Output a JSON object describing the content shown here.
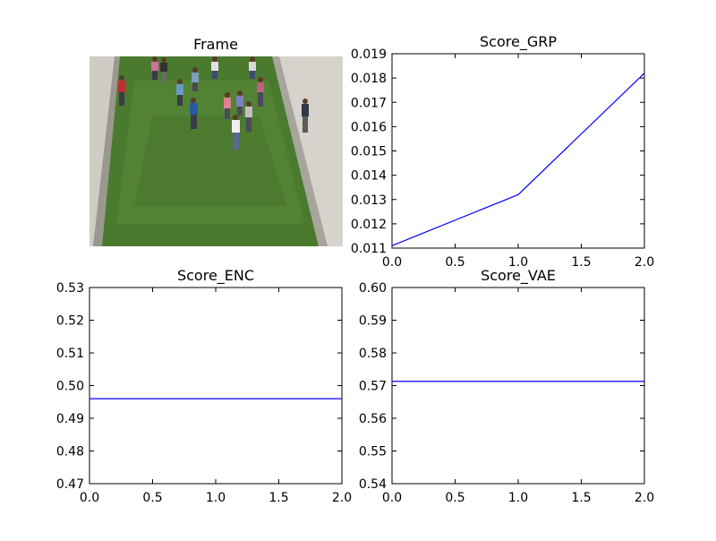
{
  "figure": {
    "frame_panel": {
      "title": "Frame",
      "image_description_hidden": ""
    }
  },
  "chart_data": [
    {
      "type": "line",
      "title": "Score_GRP",
      "xlabel": "",
      "ylabel": "",
      "x": [
        0,
        1,
        2
      ],
      "series": [
        {
          "values": [
            0.0111,
            0.0132,
            0.0182
          ],
          "color": "#0000ff"
        }
      ],
      "xlim": [
        0.0,
        2.0
      ],
      "ylim": [
        0.011,
        0.019
      ],
      "xticks": [
        "0.0",
        "0.5",
        "1.0",
        "1.5",
        "2.0"
      ],
      "yticks": [
        "0.011",
        "0.012",
        "0.013",
        "0.014",
        "0.015",
        "0.016",
        "0.017",
        "0.018",
        "0.019"
      ],
      "grid": false
    },
    {
      "type": "line",
      "title": "Score_ENC",
      "xlabel": "",
      "ylabel": "",
      "x": [
        0,
        1,
        2
      ],
      "series": [
        {
          "values": [
            0.496,
            0.496,
            0.496
          ],
          "color": "#0000ff"
        }
      ],
      "xlim": [
        0.0,
        2.0
      ],
      "ylim": [
        0.47,
        0.53
      ],
      "xticks": [
        "0.0",
        "0.5",
        "1.0",
        "1.5",
        "2.0"
      ],
      "yticks": [
        "0.47",
        "0.48",
        "0.49",
        "0.50",
        "0.51",
        "0.52",
        "0.53"
      ],
      "grid": false
    },
    {
      "type": "line",
      "title": "Score_VAE",
      "xlabel": "",
      "ylabel": "",
      "x": [
        0,
        1,
        2
      ],
      "series": [
        {
          "values": [
            0.5713,
            0.5713,
            0.5713
          ],
          "color": "#0000ff"
        }
      ],
      "xlim": [
        0.0,
        2.0
      ],
      "ylim": [
        0.54,
        0.6
      ],
      "xticks": [
        "0.0",
        "0.5",
        "1.0",
        "1.5",
        "2.0"
      ],
      "yticks": [
        "0.54",
        "0.55",
        "0.56",
        "0.57",
        "0.58",
        "0.59",
        "0.60"
      ],
      "grid": false
    }
  ]
}
